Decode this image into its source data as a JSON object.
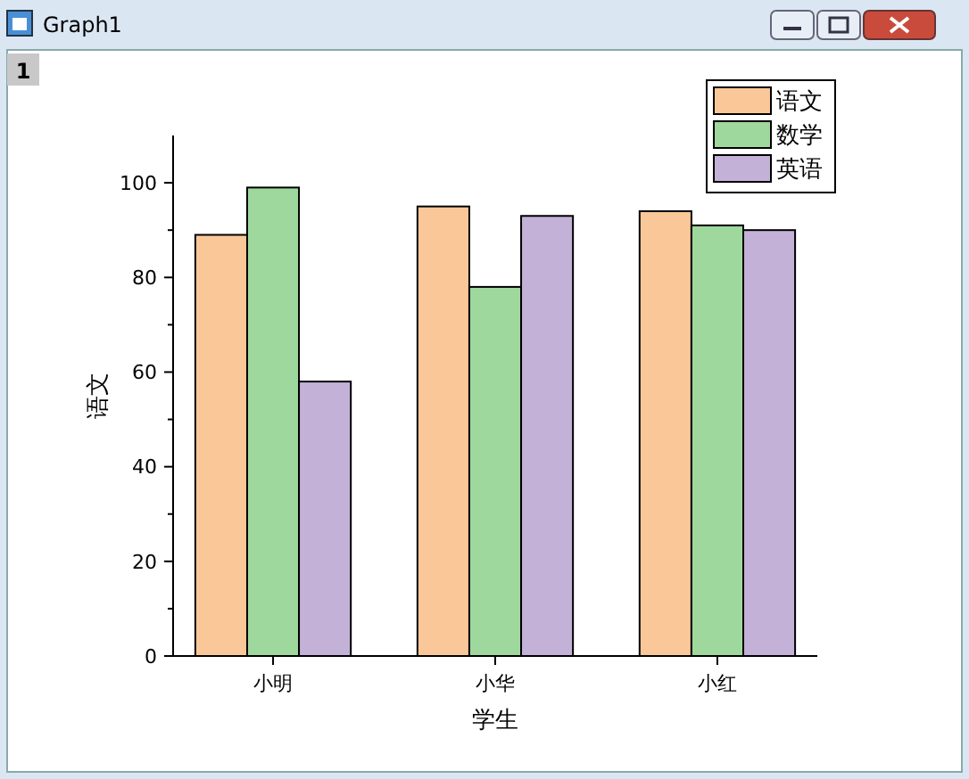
{
  "chart_data": {
    "type": "bar",
    "title": "Graph1",
    "annotations": [
      "1"
    ],
    "xlabel": "学生",
    "ylabel": "语文",
    "categories": [
      "小明",
      "小华",
      "小红"
    ],
    "series": [
      {
        "name": "语文",
        "color": "#fac898",
        "values": [
          89,
          95,
          94
        ]
      },
      {
        "name": "数学",
        "color": "#9fd89d",
        "values": [
          99,
          78,
          91
        ]
      },
      {
        "name": "英语",
        "color": "#c3b1d7",
        "values": [
          58,
          93,
          90
        ]
      }
    ],
    "ylim": [
      0,
      110
    ],
    "yticks": [
      0,
      {
        "value": 10,
        "label": null
      },
      20,
      {
        "value": 30,
        "label": null
      },
      40,
      {
        "value": 50,
        "label": null
      },
      60,
      {
        "value": 70,
        "label": null
      },
      80,
      {
        "value": 90,
        "label": null
      },
      100
    ],
    "grid": false,
    "legend": "top right"
  }
}
